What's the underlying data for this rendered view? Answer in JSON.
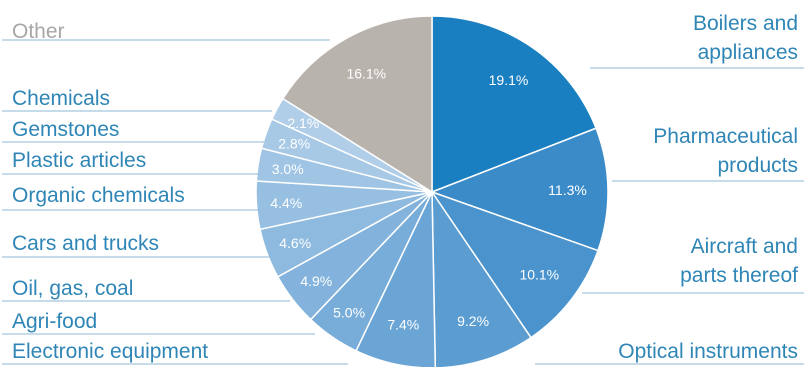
{
  "chart_data": {
    "type": "pie",
    "slices": [
      {
        "label": "Boilers and appliances",
        "lines": [
          "Boilers and",
          "appliances"
        ],
        "value": 19.1,
        "value_label": "19.1%",
        "color": "#1a7fc1"
      },
      {
        "label": "Pharmaceutical products",
        "lines": [
          "Pharmaceutical",
          "products"
        ],
        "value": 11.3,
        "value_label": "11.3%",
        "color": "#3b8bc9"
      },
      {
        "label": "Aircraft and parts thereof",
        "lines": [
          "Aircraft and",
          "parts thereof"
        ],
        "value": 10.1,
        "value_label": "10.1%",
        "color": "#4a93cc"
      },
      {
        "label": "Optical instruments",
        "lines": [
          "Optical instruments"
        ],
        "value": 9.2,
        "value_label": "9.2%",
        "color": "#5b9dd1"
      },
      {
        "label": "Electronic equipment",
        "lines": [
          "Electronic equipment"
        ],
        "value": 7.4,
        "value_label": "7.4%",
        "color": "#6aa5d6"
      },
      {
        "label": "Agri-food",
        "lines": [
          "Agri-food"
        ],
        "value": 5.0,
        "value_label": "5.0%",
        "color": "#78acd9"
      },
      {
        "label": "Oil, gas, coal",
        "lines": [
          "Oil, gas, coal"
        ],
        "value": 4.9,
        "value_label": "4.9%",
        "color": "#83b3dc"
      },
      {
        "label": "Cars and trucks",
        "lines": [
          "Cars and trucks"
        ],
        "value": 4.6,
        "value_label": "4.6%",
        "color": "#8ebadf"
      },
      {
        "label": "Organic chemicals",
        "lines": [
          "Organic chemicals"
        ],
        "value": 4.4,
        "value_label": "4.4%",
        "color": "#97bfe2"
      },
      {
        "label": "Plastic articles",
        "lines": [
          "Plastic articles"
        ],
        "value": 3.0,
        "value_label": "3.0%",
        "color": "#9fc4e4"
      },
      {
        "label": "Gemstones",
        "lines": [
          "Gemstones"
        ],
        "value": 2.8,
        "value_label": "2.8%",
        "color": "#a8c9e6"
      },
      {
        "label": "Chemicals",
        "lines": [
          "Chemicals"
        ],
        "value": 2.1,
        "value_label": "2.1%",
        "color": "#b0cee8"
      },
      {
        "label": "Other",
        "lines": [
          "Other"
        ],
        "value": 16.1,
        "value_label": "16.1%",
        "color": "#b8b3ad"
      }
    ]
  }
}
